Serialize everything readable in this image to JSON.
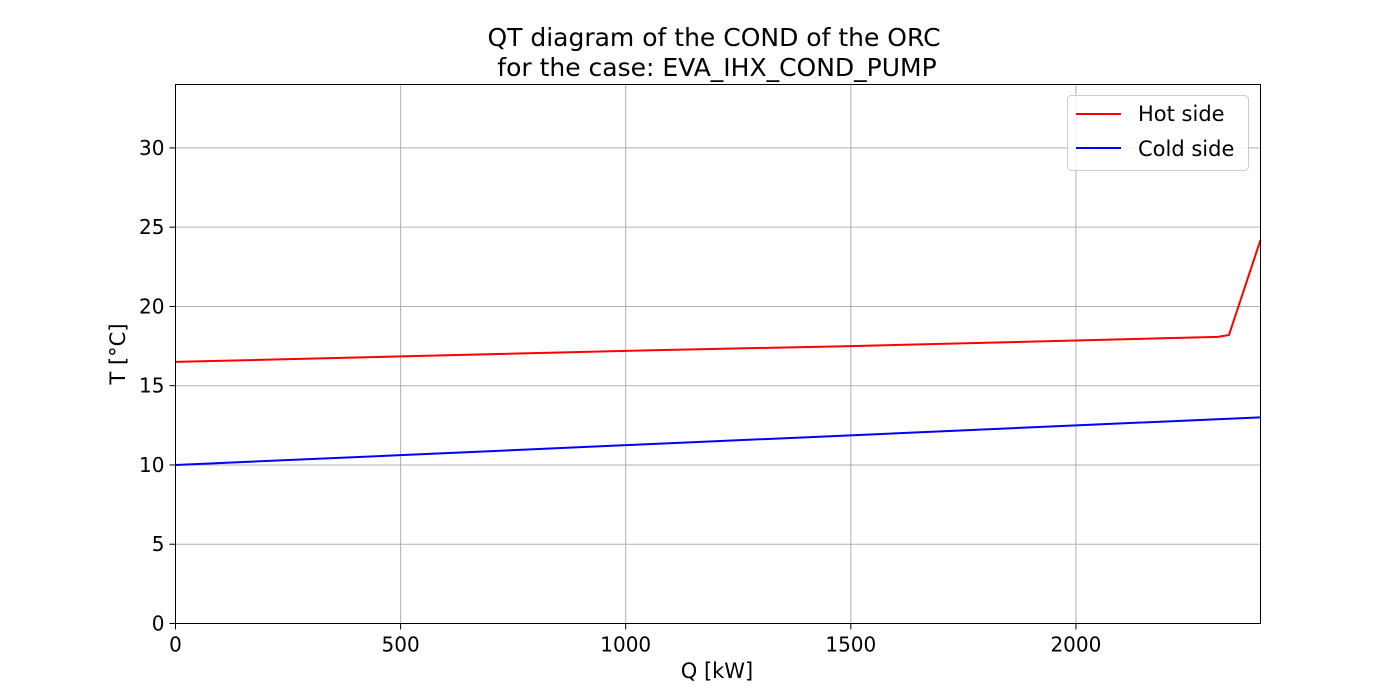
{
  "chart_data": {
    "type": "line",
    "title": "QT diagram of the COND of the ORC",
    "subtitle": "for the case: EVA_IHX_COND_PUMP",
    "xlabel": "Q [kW]",
    "ylabel": "T [°C]",
    "xlim": [
      0,
      2410
    ],
    "ylim": [
      0,
      34
    ],
    "xticks": [
      0,
      500,
      1000,
      1500,
      2000
    ],
    "yticks": [
      0,
      5,
      10,
      15,
      20,
      25,
      30
    ],
    "grid": true,
    "legend_position": "top-right",
    "series": [
      {
        "name": "Hot side",
        "color": "#ff0000",
        "x": [
          0,
          500,
          1000,
          1500,
          2000,
          2315,
          2340,
          2410
        ],
        "y": [
          16.5,
          16.85,
          17.2,
          17.5,
          17.85,
          18.08,
          18.2,
          24.2
        ]
      },
      {
        "name": "Cold side",
        "color": "#0000ff",
        "x": [
          0,
          500,
          1000,
          1500,
          2000,
          2410
        ],
        "y": [
          10.0,
          10.62,
          11.25,
          11.87,
          12.5,
          13.0
        ]
      }
    ]
  }
}
